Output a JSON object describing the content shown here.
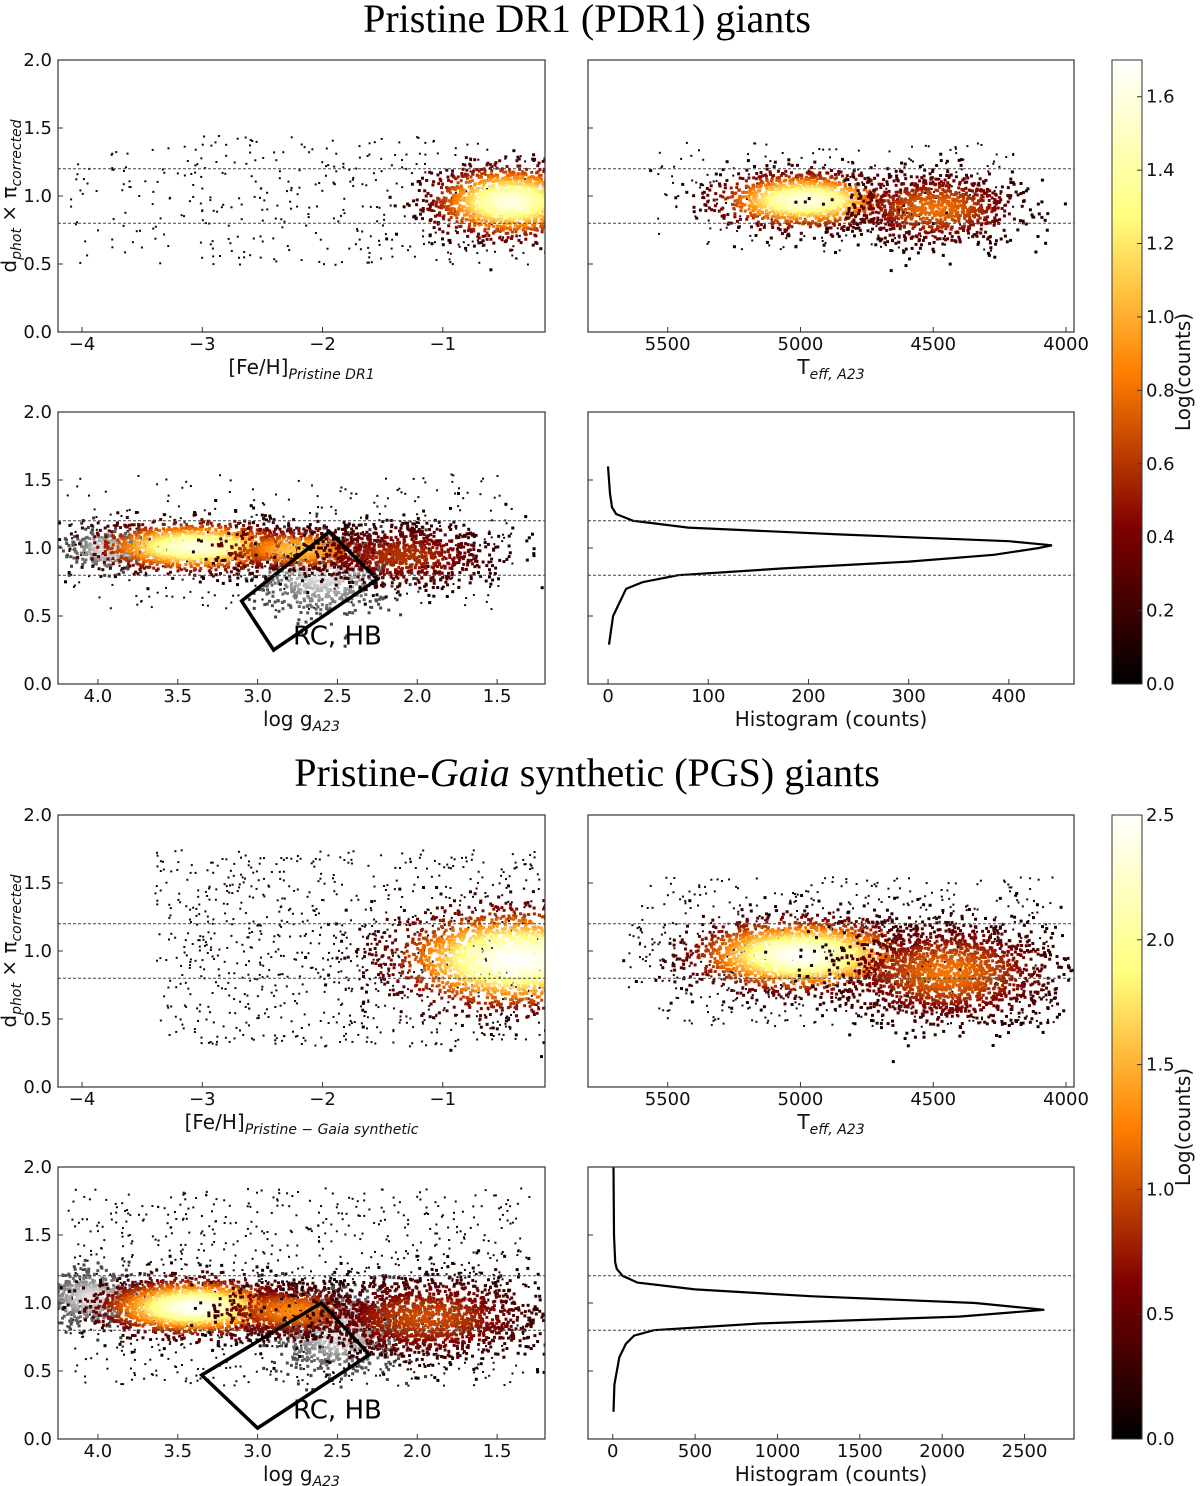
{
  "colors": {
    "frame": "#333333",
    "hist": "#000000",
    "guide": "#444444"
  },
  "chart_data": [
    {
      "section": "Pristine DR1 (PDR1) giants",
      "panels": [
        {
          "id": "pdr1-feh",
          "type": "heatmap",
          "xlabel": {
            "main": "[Fe/H]",
            "sub": "Pristine DR1"
          },
          "ylabel": {
            "main": "d",
            "sub1": "phot",
            "mid": " × π",
            "sub2": "corrected"
          },
          "xlim": [
            -4.2,
            -0.15
          ],
          "ylim": [
            0,
            2.0
          ],
          "xticks": [
            -4,
            -3,
            -2,
            -1
          ],
          "xticklabels": [
            "−4",
            "−3",
            "−2",
            "−1"
          ],
          "yticks": [
            0,
            0.5,
            1.0,
            1.5,
            2.0
          ],
          "yticklabels": [
            "0.0",
            "0.5",
            "1.0",
            "1.5",
            "2.0"
          ],
          "hlines": [
            0.8,
            1.2
          ],
          "clusters": [
            {
              "x": -0.45,
              "y": 0.97,
              "sx": 0.32,
              "sy": 0.13,
              "peak": 1.6,
              "n": 1600
            }
          ],
          "scatter": {
            "x": [
              -4.1,
              -0.3
            ],
            "y": [
              0.5,
              1.45
            ],
            "n": 380
          }
        },
        {
          "id": "pdr1-teff",
          "type": "heatmap",
          "xlabel": {
            "main": "T",
            "sub": "eff, A23"
          },
          "xlim": [
            5800,
            3970
          ],
          "ylim": [
            0,
            2.0
          ],
          "xticks": [
            5500,
            5000,
            4500,
            4000
          ],
          "xticklabels": [
            "5500",
            "5000",
            "4500",
            "4000"
          ],
          "yticks": [
            0,
            0.5,
            1.0,
            1.5,
            2.0
          ],
          "yticklabels": [
            "",
            "",
            "",
            "",
            ""
          ],
          "hlines": [
            0.8,
            1.2
          ],
          "clusters": [
            {
              "x": 4990,
              "y": 0.98,
              "sx": 160,
              "sy": 0.1,
              "peak": 1.6,
              "n": 1400
            },
            {
              "x": 4500,
              "y": 0.92,
              "sx": 160,
              "sy": 0.13,
              "peak": 0.8,
              "n": 1000
            }
          ],
          "scatter": {
            "x": [
              5550,
              4200
            ],
            "y": [
              0.6,
              1.4
            ],
            "n": 220
          }
        },
        {
          "id": "pdr1-logg",
          "type": "heatmap",
          "xlabel": {
            "main": "log g",
            "sub": "A23"
          },
          "xlim": [
            4.25,
            1.2
          ],
          "ylim": [
            0,
            2.0
          ],
          "xticks": [
            4.0,
            3.5,
            3.0,
            2.5,
            2.0,
            1.5
          ],
          "xticklabels": [
            "4.0",
            "3.5",
            "3.0",
            "2.5",
            "2.0",
            "1.5"
          ],
          "yticks": [
            0,
            0.5,
            1.0,
            1.5,
            2.0
          ],
          "yticklabels": [
            "0.0",
            "0.5",
            "1.0",
            "1.5",
            "2.0"
          ],
          "hlines": [
            0.8,
            1.2
          ],
          "clusters": [
            {
              "x": 3.4,
              "y": 1.02,
              "sx": 0.3,
              "sy": 0.09,
              "peak": 1.6,
              "n": 1500
            },
            {
              "x": 2.75,
              "y": 1.0,
              "sx": 0.25,
              "sy": 0.08,
              "peak": 1.1,
              "n": 700
            },
            {
              "x": 2.1,
              "y": 0.95,
              "sx": 0.3,
              "sy": 0.12,
              "peak": 0.6,
              "n": 900
            }
          ],
          "grey_clusters": [
            {
              "x": 3.95,
              "y": 1.0,
              "sx": 0.12,
              "sy": 0.07,
              "n": 300
            },
            {
              "x": 2.6,
              "y": 0.82,
              "sx": 0.2,
              "sy": 0.15,
              "n": 700
            }
          ],
          "scatter": {
            "x": [
              4.2,
              1.4
            ],
            "y": [
              0.55,
              1.55
            ],
            "n": 300
          },
          "box": [
            [
              2.9,
              0.25
            ],
            [
              2.25,
              0.77
            ],
            [
              2.55,
              1.12
            ],
            [
              3.1,
              0.61
            ]
          ],
          "box_label": "RC, HB",
          "box_label_at": [
            2.5,
            0.29
          ]
        },
        {
          "id": "pdr1-hist",
          "type": "line",
          "xlabel": {
            "main": "Histogram (counts)"
          },
          "xlim": [
            -20,
            465
          ],
          "ylim": [
            0,
            2.0
          ],
          "xticks": [
            0,
            100,
            200,
            300,
            400
          ],
          "xticklabels": [
            "0",
            "100",
            "200",
            "300",
            "400"
          ],
          "yticks": [
            0,
            0.5,
            1.0,
            1.5,
            2.0
          ],
          "yticklabels": [
            "",
            "",
            "",
            "",
            ""
          ],
          "hlines": [
            0.8,
            1.2
          ],
          "profile": {
            "y": [
              0.29,
              0.5,
              0.7,
              0.75,
              0.8,
              0.85,
              0.9,
              0.95,
              1.0,
              1.02,
              1.05,
              1.1,
              1.15,
              1.2,
              1.25,
              1.3,
              1.4,
              1.5,
              1.6
            ],
            "x": [
              1,
              5,
              18,
              35,
              70,
              175,
              300,
              385,
              430,
              443,
              400,
              230,
              80,
              25,
              8,
              4,
              2,
              1,
              0
            ]
          }
        }
      ],
      "colorbar": {
        "label": "Log(counts)",
        "min": 0,
        "max": 1.7,
        "ticks": [
          "0.0",
          "0.2",
          "0.4",
          "0.6",
          "0.8",
          "1.0",
          "1.2",
          "1.4",
          "1.6"
        ],
        "tickvalues": [
          0,
          0.2,
          0.4,
          0.6,
          0.8,
          1.0,
          1.2,
          1.4,
          1.6
        ]
      }
    },
    {
      "section": "Pristine-Gaia synthetic (PGS) giants",
      "panels": [
        {
          "id": "pgs-feh",
          "type": "heatmap",
          "xlabel": {
            "main": "[Fe/H]",
            "sub": "Pristine − Gaia synthetic"
          },
          "ylabel": {
            "main": "d",
            "sub1": "phot",
            "mid": " × π",
            "sub2": "corrected"
          },
          "xlim": [
            -4.2,
            -0.15
          ],
          "ylim": [
            0,
            2.0
          ],
          "xticks": [
            -4,
            -3,
            -2,
            -1
          ],
          "xticklabels": [
            "−4",
            "−3",
            "−2",
            "−1"
          ],
          "yticks": [
            0,
            0.5,
            1.0,
            1.5,
            2.0
          ],
          "yticklabels": [
            "0.0",
            "0.5",
            "1.0",
            "1.5",
            "2.0"
          ],
          "hlines": [
            0.8,
            1.2
          ],
          "clusters": [
            {
              "x": -0.4,
              "y": 0.95,
              "sx": 0.5,
              "sy": 0.18,
              "peak": 2.5,
              "n": 2500
            }
          ],
          "scatter": {
            "x": [
              -3.4,
              -0.2
            ],
            "y": [
              0.3,
              1.75
            ],
            "n": 900
          }
        },
        {
          "id": "pgs-teff",
          "type": "heatmap",
          "xlabel": {
            "main": "T",
            "sub": "eff, A23"
          },
          "xlim": [
            5800,
            3970
          ],
          "ylim": [
            0,
            2.0
          ],
          "xticks": [
            5500,
            5000,
            4500,
            4000
          ],
          "xticklabels": [
            "5500",
            "5000",
            "4500",
            "4000"
          ],
          "yticks": [
            0,
            0.5,
            1.0,
            1.5,
            2.0
          ],
          "yticklabels": [
            "",
            "",
            "",
            "",
            ""
          ],
          "hlines": [
            0.8,
            1.2
          ],
          "clusters": [
            {
              "x": 5000,
              "y": 0.98,
              "sx": 200,
              "sy": 0.13,
              "peak": 2.5,
              "n": 2200
            },
            {
              "x": 4450,
              "y": 0.85,
              "sx": 200,
              "sy": 0.18,
              "peak": 1.2,
              "n": 1800
            }
          ],
          "scatter": {
            "x": [
              5650,
              4050
            ],
            "y": [
              0.45,
              1.55
            ],
            "n": 600
          }
        },
        {
          "id": "pgs-logg",
          "type": "heatmap",
          "xlabel": {
            "main": "log g",
            "sub": "A23"
          },
          "xlim": [
            4.25,
            1.2
          ],
          "ylim": [
            0,
            2.0
          ],
          "xticks": [
            4.0,
            3.5,
            3.0,
            2.5,
            2.0,
            1.5
          ],
          "xticklabels": [
            "4.0",
            "3.5",
            "3.0",
            "2.5",
            "2.0",
            "1.5"
          ],
          "yticks": [
            0,
            0.5,
            1.0,
            1.5,
            2.0
          ],
          "yticklabels": [
            "0.0",
            "0.5",
            "1.0",
            "1.5",
            "2.0"
          ],
          "hlines": [
            0.8,
            1.2
          ],
          "clusters": [
            {
              "x": 3.4,
              "y": 0.98,
              "sx": 0.28,
              "sy": 0.1,
              "peak": 2.5,
              "n": 2200
            },
            {
              "x": 2.8,
              "y": 0.95,
              "sx": 0.22,
              "sy": 0.1,
              "peak": 1.3,
              "n": 800
            },
            {
              "x": 1.95,
              "y": 0.9,
              "sx": 0.35,
              "sy": 0.15,
              "peak": 1.0,
              "n": 1600
            }
          ],
          "grey_clusters": [
            {
              "x": 4.05,
              "y": 1.05,
              "sx": 0.15,
              "sy": 0.1,
              "n": 600
            },
            {
              "x": 2.5,
              "y": 0.8,
              "sx": 0.2,
              "sy": 0.15,
              "n": 900
            }
          ],
          "scatter": {
            "x": [
              4.2,
              1.3
            ],
            "y": [
              0.4,
              1.85
            ],
            "n": 900
          },
          "box": [
            [
              3.0,
              0.08
            ],
            [
              2.3,
              0.62
            ],
            [
              2.6,
              1.0
            ],
            [
              3.35,
              0.47
            ]
          ],
          "box_label": "RC, HB",
          "box_label_at": [
            2.5,
            0.15
          ]
        },
        {
          "id": "pgs-hist",
          "type": "line",
          "xlabel": {
            "main": "Histogram (counts)"
          },
          "xlim": [
            -150,
            2800
          ],
          "ylim": [
            0,
            2.0
          ],
          "xticks": [
            0,
            500,
            1000,
            1500,
            2000,
            2500
          ],
          "xticklabels": [
            "0",
            "500",
            "1000",
            "1500",
            "2000",
            "2500"
          ],
          "yticks": [
            0,
            0.5,
            1.0,
            1.5,
            2.0
          ],
          "yticklabels": [
            "",
            "",
            "",
            "",
            ""
          ],
          "hlines": [
            0.8,
            1.2
          ],
          "profile": {
            "y": [
              0.2,
              0.4,
              0.6,
              0.7,
              0.76,
              0.8,
              0.85,
              0.9,
              0.95,
              1.0,
              1.05,
              1.1,
              1.15,
              1.2,
              1.25,
              1.3,
              1.5,
              2.0
            ],
            "x": [
              5,
              10,
              40,
              80,
              130,
              250,
              900,
              2100,
              2620,
              2200,
              1200,
              500,
              150,
              60,
              25,
              15,
              8,
              5
            ]
          }
        }
      ],
      "colorbar": {
        "label": "Log(counts)",
        "min": 0,
        "max": 2.5,
        "ticks": [
          "0.0",
          "0.5",
          "1.0",
          "1.5",
          "2.0",
          "2.5"
        ],
        "tickvalues": [
          0,
          0.5,
          1.0,
          1.5,
          2.0,
          2.5
        ]
      }
    }
  ]
}
